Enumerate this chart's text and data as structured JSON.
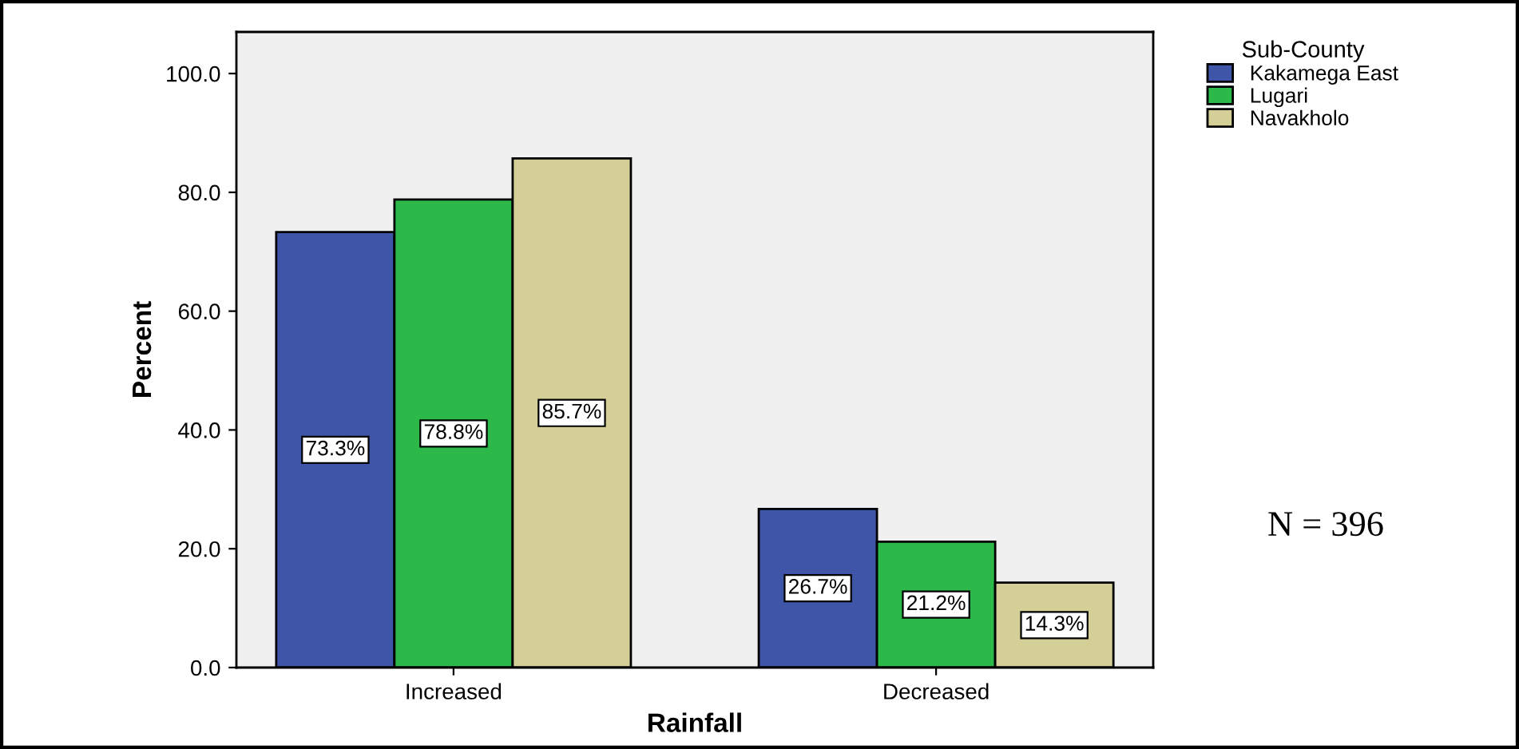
{
  "chart_data": {
    "type": "bar",
    "xlabel": "Rainfall",
    "ylabel": "Percent",
    "legend_title": "Sub-County",
    "categories": [
      "Increased",
      "Decreased"
    ],
    "series": [
      {
        "name": "Kakamega East",
        "color": "#3f56a8",
        "values": [
          73.3,
          26.7
        ],
        "value_labels": [
          "73.3%",
          "26.7%"
        ]
      },
      {
        "name": "Lugari",
        "color": "#2db84a",
        "values": [
          78.8,
          21.2
        ],
        "value_labels": [
          "78.8%",
          "21.2%"
        ]
      },
      {
        "name": "Navakholo",
        "color": "#d4cf97",
        "values": [
          85.7,
          14.3
        ],
        "value_labels": [
          "85.7%",
          "14.3%"
        ]
      }
    ],
    "ylim": [
      0,
      107
    ],
    "yticks": [
      {
        "value": 0,
        "label": "0.0"
      },
      {
        "value": 20,
        "label": "20.0"
      },
      {
        "value": 40,
        "label": "40.0"
      },
      {
        "value": 60,
        "label": "60.0"
      },
      {
        "value": 80,
        "label": "80.0"
      },
      {
        "value": 100,
        "label": "100.0"
      }
    ],
    "grid": false,
    "legend": "top right",
    "annotations": [
      "N = 396"
    ]
  }
}
